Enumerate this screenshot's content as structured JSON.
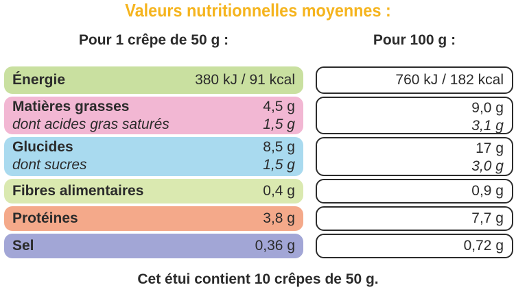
{
  "title": "Valeurs nutritionnelles moyennes :",
  "col_left": "Pour 1 crêpe de 50 g :",
  "col_right": "Pour 100 g :",
  "rows": [
    {
      "name": "Énergie",
      "left": "380 kJ / 91 kcal",
      "right": "760 kJ / 182 kcal",
      "color": "#c9e0a0"
    },
    {
      "name": "Matières grasses",
      "left": "4,5 g",
      "right": "9,0 g",
      "sub_name": "dont acides gras saturés",
      "sub_left": "1,5 g",
      "sub_right": "3,1 g",
      "color": "#f2b7d3"
    },
    {
      "name": "Glucides",
      "left": "8,5 g",
      "right": "17 g",
      "sub_name": "dont sucres",
      "sub_left": "1,5 g",
      "sub_right": "3,0 g",
      "color": "#a9daef"
    },
    {
      "name": "Fibres alimentaires",
      "left": "0,4 g",
      "right": "0,9 g",
      "color": "#dae9b0"
    },
    {
      "name": "Protéines",
      "left": "3,8 g",
      "right": "7,7 g",
      "color": "#f4a98a"
    },
    {
      "name": "Sel",
      "left": "0,36 g",
      "right": "0,72 g",
      "color": "#a2a6d6"
    }
  ],
  "footer": "Cet étui contient 10 crêpes de 50 g."
}
